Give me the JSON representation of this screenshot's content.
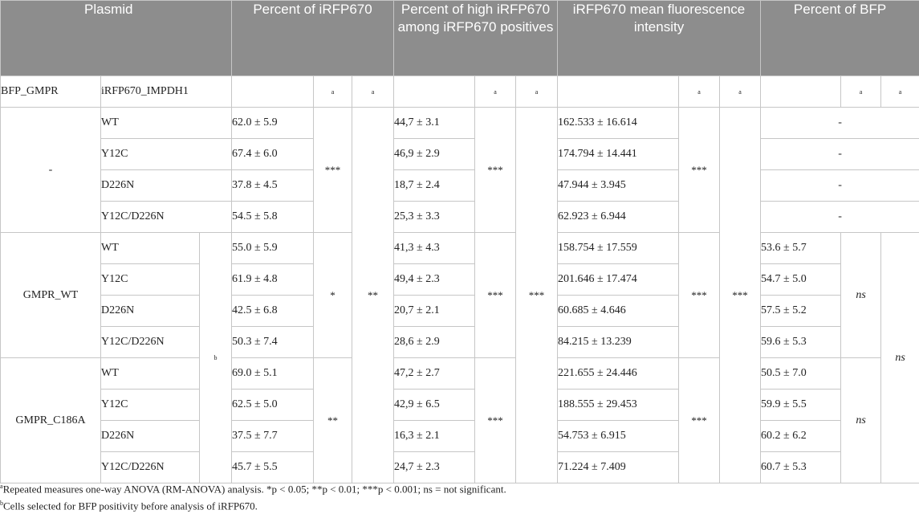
{
  "header": {
    "plasmid": "Plasmid",
    "percent_irfp": "Percent of iRFP670",
    "percent_high": "Percent of high iRFP670 among iRFP670 positives",
    "mfi": "iRFP670 mean fluorescence intensity",
    "percent_bfp": "Percent of BFP"
  },
  "subheader": {
    "bfp_col": "BFP_GMPR",
    "irfp_col": "iRFP670_IMPDH1",
    "sup_a": "a"
  },
  "groups": {
    "none": "-",
    "gmpr_wt": "GMPR_WT",
    "gmpr_c186a": "GMPR_C186A",
    "sup_b": "b"
  },
  "rows": [
    {
      "mut": "WT",
      "irfp": "62.0 ± 5.9",
      "high": "44,7 ± 3.1",
      "mfi": "162.533 ± 16.614",
      "bfp": "-"
    },
    {
      "mut": "Y12C",
      "irfp": "67.4 ± 6.0",
      "high": "46,9 ± 2.9",
      "mfi": "174.794 ± 14.441",
      "bfp": "-"
    },
    {
      "mut": "D226N",
      "irfp": "37.8 ± 4.5",
      "high": "18,7 ± 2.4",
      "mfi": "47.944 ± 3.945",
      "bfp": "-"
    },
    {
      "mut": "Y12C/D226N",
      "irfp": "54.5 ± 5.8",
      "high": "25,3 ± 3.3",
      "mfi": "62.923 ± 6.944",
      "bfp": "-"
    },
    {
      "mut": "WT",
      "irfp": "55.0 ± 5.9",
      "high": "41,3 ± 4.3",
      "mfi": "158.754 ± 17.559",
      "bfp": "53.6 ± 5.7"
    },
    {
      "mut": "Y12C",
      "irfp": "61.9 ± 4.8",
      "high": "49,4 ± 2.3",
      "mfi": "201.646 ± 17.474",
      "bfp": "54.7 ± 5.0"
    },
    {
      "mut": "D226N",
      "irfp": "42.5 ± 6.8",
      "high": "20,7 ± 2.1",
      "mfi": "60.685 ± 4.646",
      "bfp": "57.5 ± 5.2"
    },
    {
      "mut": "Y12C/D226N",
      "irfp": "50.3 ± 7.4",
      "high": "28,6 ± 2.9",
      "mfi": "84.215 ± 13.239",
      "bfp": "59.6 ± 5.3"
    },
    {
      "mut": "WT",
      "irfp": "69.0 ± 5.1",
      "high": "47,2 ± 2.7",
      "mfi": "221.655 ± 24.446",
      "bfp": "50.5 ± 7.0"
    },
    {
      "mut": "Y12C",
      "irfp": "62.5 ± 5.0",
      "high": "42,9 ± 6.5",
      "mfi": "188.555 ± 29.453",
      "bfp": "59.9 ± 5.5"
    },
    {
      "mut": "D226N",
      "irfp": "37.5 ± 7.7",
      "high": "16,3 ± 2.1",
      "mfi": "54.753 ± 6.915",
      "bfp": "60.2 ± 6.2"
    },
    {
      "mut": "Y12C/D226N",
      "irfp": "45.7 ± 5.5",
      "high": "24,7 ± 2.3",
      "mfi": "71.224 ± 7.409",
      "bfp": "60.7 ± 5.3"
    }
  ],
  "sig": {
    "irfp_none": "***",
    "irfp_wt": "*",
    "irfp_c186a": "**",
    "irfp_all": "**",
    "high_none": "***",
    "high_wt": "***",
    "high_c186a": "***",
    "high_all": "***",
    "mfi_none": "***",
    "mfi_wt": "***",
    "mfi_c186a": "***",
    "mfi_all": "***",
    "bfp_wt": "ns",
    "bfp_c186a": "ns",
    "bfp_all": "ns"
  },
  "footnotes": {
    "a_sup": "a",
    "a_text": "Repeated measures one-way ANOVA (RM-ANOVA) analysis. *p < 0.05; **p < 0.01; ***p < 0.001; ns = not significant.",
    "b_sup": "b",
    "b_text": "Cells selected for BFP positivity before analysis of iRFP670."
  }
}
